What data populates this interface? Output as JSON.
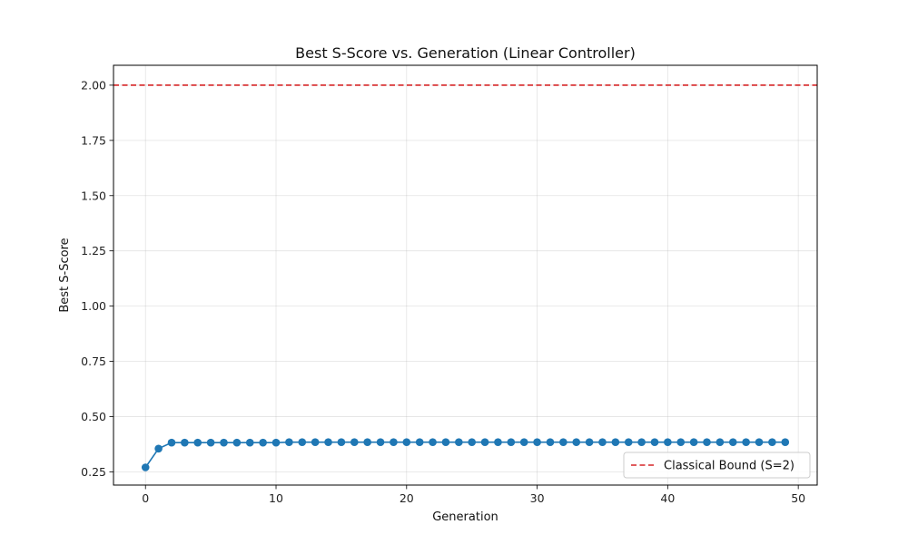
{
  "chart_data": {
    "type": "line",
    "title": "Best S-Score vs. Generation (Linear Controller)",
    "xlabel": "Generation",
    "ylabel": "Best S-Score",
    "xlim": [
      -2.45,
      51.45
    ],
    "ylim": [
      0.19,
      2.09
    ],
    "xticks": [
      0,
      10,
      20,
      30,
      40,
      50
    ],
    "yticks": [
      0.25,
      0.5,
      0.75,
      1.0,
      1.25,
      1.5,
      1.75,
      2.0
    ],
    "ytick_labels": [
      "0.25",
      "0.50",
      "0.75",
      "1.00",
      "1.25",
      "1.50",
      "1.75",
      "2.00"
    ],
    "grid": true,
    "legend_position": "lower-right",
    "series": [
      {
        "color": "#1f77b4",
        "marker": "circle",
        "x": [
          0,
          1,
          2,
          3,
          4,
          5,
          6,
          7,
          8,
          9,
          10,
          11,
          12,
          13,
          14,
          15,
          16,
          17,
          18,
          19,
          20,
          21,
          22,
          23,
          24,
          25,
          26,
          27,
          28,
          29,
          30,
          31,
          32,
          33,
          34,
          35,
          36,
          37,
          38,
          39,
          40,
          41,
          42,
          43,
          44,
          45,
          46,
          47,
          48,
          49
        ],
        "y": [
          0.27,
          0.355,
          0.382,
          0.382,
          0.382,
          0.382,
          0.382,
          0.382,
          0.382,
          0.382,
          0.382,
          0.384,
          0.384,
          0.384,
          0.384,
          0.384,
          0.384,
          0.384,
          0.384,
          0.384,
          0.384,
          0.384,
          0.384,
          0.384,
          0.384,
          0.384,
          0.384,
          0.384,
          0.384,
          0.384,
          0.384,
          0.384,
          0.384,
          0.384,
          0.384,
          0.384,
          0.384,
          0.384,
          0.384,
          0.384,
          0.384,
          0.384,
          0.384,
          0.384,
          0.384,
          0.384,
          0.384,
          0.384,
          0.384,
          0.384
        ]
      }
    ],
    "reference_lines": [
      {
        "name": "Classical Bound (S=2)",
        "y": 2.0,
        "color": "#d62728",
        "style": "dashed"
      }
    ]
  }
}
